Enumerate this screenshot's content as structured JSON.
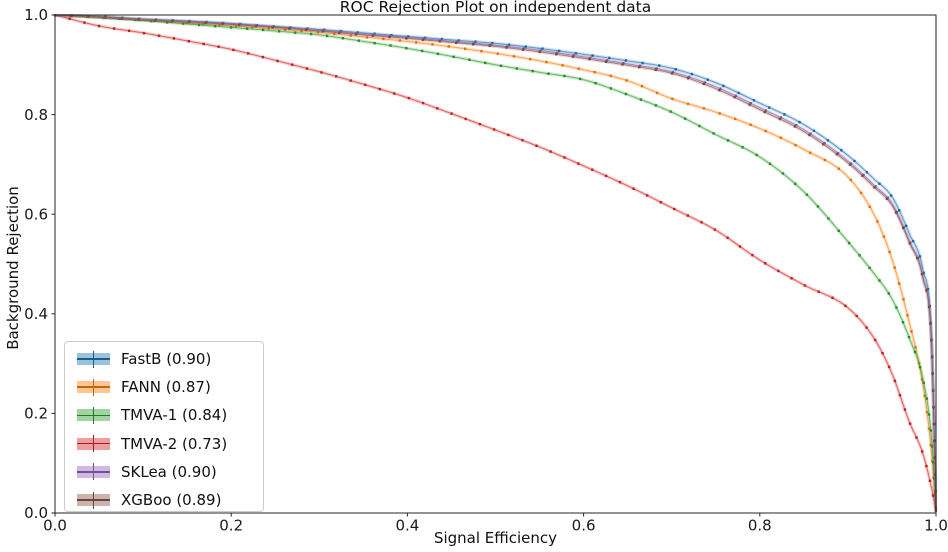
{
  "figure_title": "ROC Rejection Plot on independent data",
  "chart_data": {
    "type": "line",
    "title": "ROC Rejection Plot on independent data",
    "xlabel": "Signal Efficiency",
    "ylabel": "Background Rejection",
    "xlim": [
      0.0,
      1.0
    ],
    "ylim": [
      0.0,
      1.0
    ],
    "grid": false,
    "legend_position": "lower-left",
    "x_tick_values": [
      0.0,
      0.2,
      0.4,
      0.6,
      0.8,
      1.0
    ],
    "x_ticks": [
      "0.0",
      "0.2",
      "0.4",
      "0.6",
      "0.8",
      "1.0"
    ],
    "y_tick_values": [
      0.0,
      0.2,
      0.4,
      0.6,
      0.8,
      1.0
    ],
    "y_ticks": [
      "0.0",
      "0.2",
      "0.4",
      "0.6",
      "0.8",
      "1.0"
    ],
    "marker_style": "errorbar-with-band",
    "x": [
      0.0,
      0.05,
      0.1,
      0.15,
      0.2,
      0.25,
      0.3,
      0.35,
      0.4,
      0.45,
      0.5,
      0.55,
      0.6,
      0.65,
      0.7,
      0.75,
      0.8,
      0.85,
      0.9,
      0.93,
      0.95,
      0.97,
      0.985,
      0.995,
      1.0
    ],
    "series": [
      {
        "name": "FastB",
        "auc": 0.9,
        "legend_label": "FastB (0.90)",
        "color": "#1f77b4",
        "values": [
          1.0,
          0.997,
          0.992,
          0.988,
          0.983,
          0.977,
          0.971,
          0.964,
          0.957,
          0.95,
          0.943,
          0.933,
          0.921,
          0.908,
          0.893,
          0.864,
          0.823,
          0.78,
          0.718,
          0.67,
          0.635,
          0.56,
          0.49,
          0.35,
          0.01
        ]
      },
      {
        "name": "FANN",
        "auc": 0.87,
        "legend_label": "FANN (0.87)",
        "color": "#ff7f0e",
        "values": [
          1.0,
          0.995,
          0.99,
          0.984,
          0.978,
          0.972,
          0.965,
          0.956,
          0.947,
          0.936,
          0.923,
          0.908,
          0.89,
          0.868,
          0.832,
          0.805,
          0.772,
          0.73,
          0.675,
          0.598,
          0.51,
          0.38,
          0.26,
          0.12,
          0.005
        ]
      },
      {
        "name": "TMVA-1",
        "auc": 0.84,
        "legend_label": "TMVA-1 (0.84)",
        "color": "#2ca02c",
        "values": [
          1.0,
          0.995,
          0.989,
          0.982,
          0.975,
          0.968,
          0.96,
          0.947,
          0.933,
          0.917,
          0.9,
          0.885,
          0.87,
          0.84,
          0.805,
          0.76,
          0.715,
          0.645,
          0.545,
          0.48,
          0.43,
          0.35,
          0.27,
          0.15,
          0.005
        ]
      },
      {
        "name": "TMVA-2",
        "auc": 0.73,
        "legend_label": "TMVA-2 (0.73)",
        "color": "#d62728",
        "values": [
          1.0,
          0.978,
          0.964,
          0.948,
          0.931,
          0.909,
          0.886,
          0.861,
          0.834,
          0.802,
          0.769,
          0.735,
          0.697,
          0.657,
          0.613,
          0.568,
          0.508,
          0.458,
          0.412,
          0.35,
          0.28,
          0.182,
          0.12,
          0.05,
          0.005
        ]
      },
      {
        "name": "SKLea",
        "auc": 0.9,
        "legend_label": "SKLea (0.90)",
        "color": "#9467bd",
        "values": [
          1.0,
          0.996,
          0.991,
          0.987,
          0.982,
          0.976,
          0.969,
          0.962,
          0.955,
          0.947,
          0.939,
          0.929,
          0.916,
          0.902,
          0.886,
          0.856,
          0.814,
          0.77,
          0.707,
          0.658,
          0.622,
          0.546,
          0.476,
          0.338,
          0.01
        ]
      },
      {
        "name": "XGBoo",
        "auc": 0.89,
        "legend_label": "XGBoo (0.89)",
        "color": "#8c564b",
        "values": [
          1.0,
          0.996,
          0.99,
          0.986,
          0.981,
          0.975,
          0.968,
          0.96,
          0.953,
          0.945,
          0.937,
          0.926,
          0.913,
          0.899,
          0.883,
          0.852,
          0.81,
          0.766,
          0.703,
          0.654,
          0.618,
          0.542,
          0.472,
          0.334,
          0.01
        ]
      }
    ]
  }
}
